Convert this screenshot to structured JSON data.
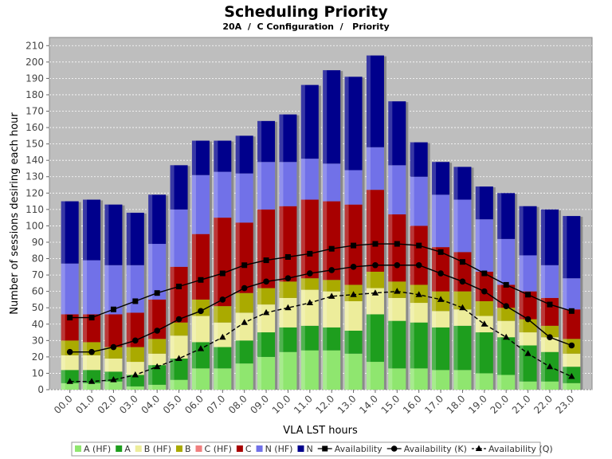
{
  "chart_data": {
    "type": "bar",
    "stacked": true,
    "title": "Scheduling Priority",
    "subtitle": "20A  /  C Configuration  /   Priority",
    "xlabel": "VLA LST hours",
    "ylabel": "Number of sessions desiring each hour",
    "ylim": [
      0,
      215
    ],
    "yticks": [
      0,
      10,
      20,
      30,
      40,
      50,
      60,
      70,
      80,
      90,
      100,
      110,
      120,
      130,
      140,
      150,
      160,
      170,
      180,
      190,
      200,
      210
    ],
    "grid": true,
    "categories": [
      "00.0",
      "01.0",
      "02.0",
      "03.0",
      "04.0",
      "05.0",
      "06.0",
      "07.0",
      "08.0",
      "09.0",
      "10.0",
      "11.0",
      "12.0",
      "13.0",
      "14.0",
      "15.0",
      "16.0",
      "17.0",
      "18.0",
      "19.0",
      "20.0",
      "21.0",
      "22.0",
      "23.0"
    ],
    "series": [
      {
        "name": "A (HF)",
        "color": "#8fe66f",
        "values": [
          4,
          4,
          5,
          2,
          3,
          6,
          13,
          13,
          16,
          20,
          23,
          24,
          24,
          22,
          17,
          13,
          13,
          12,
          12,
          10,
          9,
          5,
          5,
          4
        ]
      },
      {
        "name": "A",
        "color": "#1e9e1e",
        "values": [
          8,
          8,
          6,
          7,
          12,
          13,
          16,
          13,
          14,
          15,
          15,
          15,
          14,
          14,
          29,
          29,
          28,
          26,
          27,
          25,
          23,
          22,
          18,
          10
        ]
      },
      {
        "name": "B (HF)",
        "color": "#eded9b",
        "values": [
          9,
          9,
          8,
          8,
          7,
          14,
          16,
          15,
          17,
          17,
          18,
          22,
          22,
          18,
          16,
          14,
          12,
          10,
          10,
          10,
          10,
          8,
          9,
          8
        ]
      },
      {
        "name": "B",
        "color": "#aaaa00",
        "values": [
          9,
          8,
          7,
          9,
          9,
          8,
          10,
          10,
          12,
          10,
          10,
          7,
          7,
          10,
          10,
          10,
          11,
          12,
          11,
          9,
          8,
          8,
          7,
          9
        ]
      },
      {
        "name": "C (HF)",
        "color": "#f07f7f",
        "values": [
          0,
          0,
          0,
          0,
          0,
          0,
          0,
          0,
          0,
          0,
          0,
          0,
          0,
          0,
          0,
          0,
          0,
          0,
          0,
          0,
          0,
          0,
          0,
          0
        ]
      },
      {
        "name": "C",
        "color": "#a80000",
        "values": [
          16,
          17,
          20,
          21,
          24,
          34,
          40,
          54,
          43,
          48,
          46,
          48,
          48,
          49,
          50,
          41,
          36,
          27,
          24,
          18,
          14,
          17,
          17,
          18
        ]
      },
      {
        "name": "N (HF)",
        "color": "#7171e8",
        "values": [
          31,
          33,
          30,
          29,
          34,
          35,
          36,
          28,
          30,
          29,
          27,
          25,
          23,
          21,
          26,
          30,
          30,
          32,
          32,
          32,
          28,
          22,
          20,
          19
        ]
      },
      {
        "name": "N",
        "color": "#00008c",
        "values": [
          38,
          37,
          37,
          32,
          30,
          27,
          21,
          19,
          23,
          25,
          29,
          45,
          57,
          57,
          56,
          39,
          21,
          20,
          20,
          20,
          28,
          30,
          34,
          38
        ]
      }
    ],
    "lines": [
      {
        "name": "Availability",
        "marker": "square",
        "dash": "solid",
        "values": [
          44,
          44,
          49,
          54,
          59,
          63,
          67,
          71,
          76,
          79,
          81,
          83,
          86,
          88,
          89,
          89,
          88,
          84,
          78,
          71,
          64,
          58,
          52,
          48
        ]
      },
      {
        "name": "Availability (K)",
        "marker": "circle",
        "dash": "solid",
        "values": [
          23,
          23,
          26,
          30,
          36,
          43,
          48,
          55,
          62,
          66,
          68,
          71,
          73,
          75,
          76,
          76,
          76,
          71,
          66,
          60,
          51,
          43,
          32,
          27
        ]
      },
      {
        "name": "Availability (Q)",
        "marker": "triangle",
        "dash": "dashed",
        "values": [
          5,
          5,
          6,
          9,
          14,
          19,
          25,
          32,
          41,
          47,
          50,
          53,
          57,
          58,
          59,
          60,
          58,
          55,
          50,
          40,
          32,
          22,
          14,
          8
        ]
      }
    ]
  }
}
